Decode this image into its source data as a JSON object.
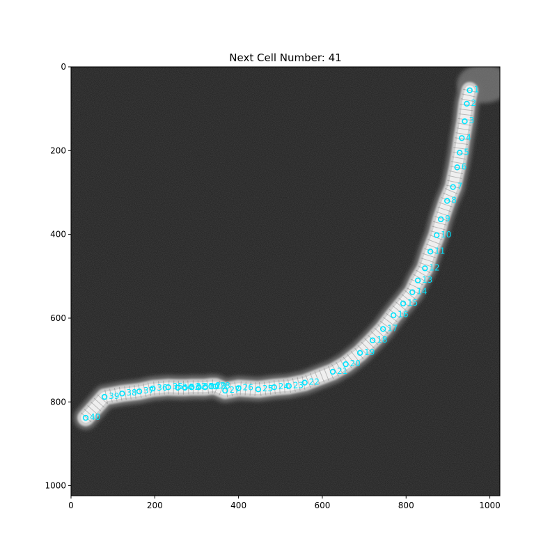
{
  "title": "Next Cell Number: 41",
  "image": {
    "width": 1024,
    "height": 1024,
    "x_ticks": [
      0,
      200,
      400,
      600,
      800,
      1000
    ],
    "y_ticks": [
      0,
      200,
      400,
      600,
      800,
      1000
    ],
    "background_color": "#1c1c1c",
    "marker_color": "#00e5ff"
  },
  "cells": [
    {
      "label": "1",
      "x": 952,
      "y": 56
    },
    {
      "label": "2",
      "x": 945,
      "y": 88
    },
    {
      "label": "3",
      "x": 940,
      "y": 130
    },
    {
      "label": "4",
      "x": 933,
      "y": 170
    },
    {
      "label": "5",
      "x": 928,
      "y": 205
    },
    {
      "label": "6",
      "x": 922,
      "y": 240
    },
    {
      "label": "7",
      "x": 912,
      "y": 287
    },
    {
      "label": "8",
      "x": 898,
      "y": 320
    },
    {
      "label": "9",
      "x": 883,
      "y": 364
    },
    {
      "label": "10",
      "x": 873,
      "y": 402
    },
    {
      "label": "11",
      "x": 858,
      "y": 441
    },
    {
      "label": "12",
      "x": 845,
      "y": 481
    },
    {
      "label": "13",
      "x": 828,
      "y": 510
    },
    {
      "label": "14",
      "x": 815,
      "y": 538
    },
    {
      "label": "15",
      "x": 793,
      "y": 565
    },
    {
      "label": "16",
      "x": 770,
      "y": 593
    },
    {
      "label": "17",
      "x": 745,
      "y": 626
    },
    {
      "label": "18",
      "x": 720,
      "y": 653
    },
    {
      "label": "19",
      "x": 690,
      "y": 683
    },
    {
      "label": "20",
      "x": 656,
      "y": 710
    },
    {
      "label": "21",
      "x": 625,
      "y": 728
    },
    {
      "label": "22",
      "x": 558,
      "y": 754
    },
    {
      "label": "23",
      "x": 520,
      "y": 762
    },
    {
      "label": "24",
      "x": 485,
      "y": 765
    },
    {
      "label": "25",
      "x": 447,
      "y": 770
    },
    {
      "label": "26",
      "x": 400,
      "y": 767
    },
    {
      "label": "27",
      "x": 368,
      "y": 773
    },
    {
      "label": "28",
      "x": 345,
      "y": 763
    },
    {
      "label": "29",
      "x": 335,
      "y": 763
    },
    {
      "label": "30",
      "x": 320,
      "y": 765
    },
    {
      "label": "31",
      "x": 305,
      "y": 765
    },
    {
      "label": "32",
      "x": 288,
      "y": 765
    },
    {
      "label": "33",
      "x": 272,
      "y": 766
    },
    {
      "label": "34",
      "x": 255,
      "y": 766
    },
    {
      "label": "35",
      "x": 232,
      "y": 765
    },
    {
      "label": "36",
      "x": 195,
      "y": 768
    },
    {
      "label": "37",
      "x": 163,
      "y": 775
    },
    {
      "label": "38",
      "x": 122,
      "y": 780
    },
    {
      "label": "39",
      "x": 80,
      "y": 788
    },
    {
      "label": "40",
      "x": 35,
      "y": 838
    }
  ]
}
